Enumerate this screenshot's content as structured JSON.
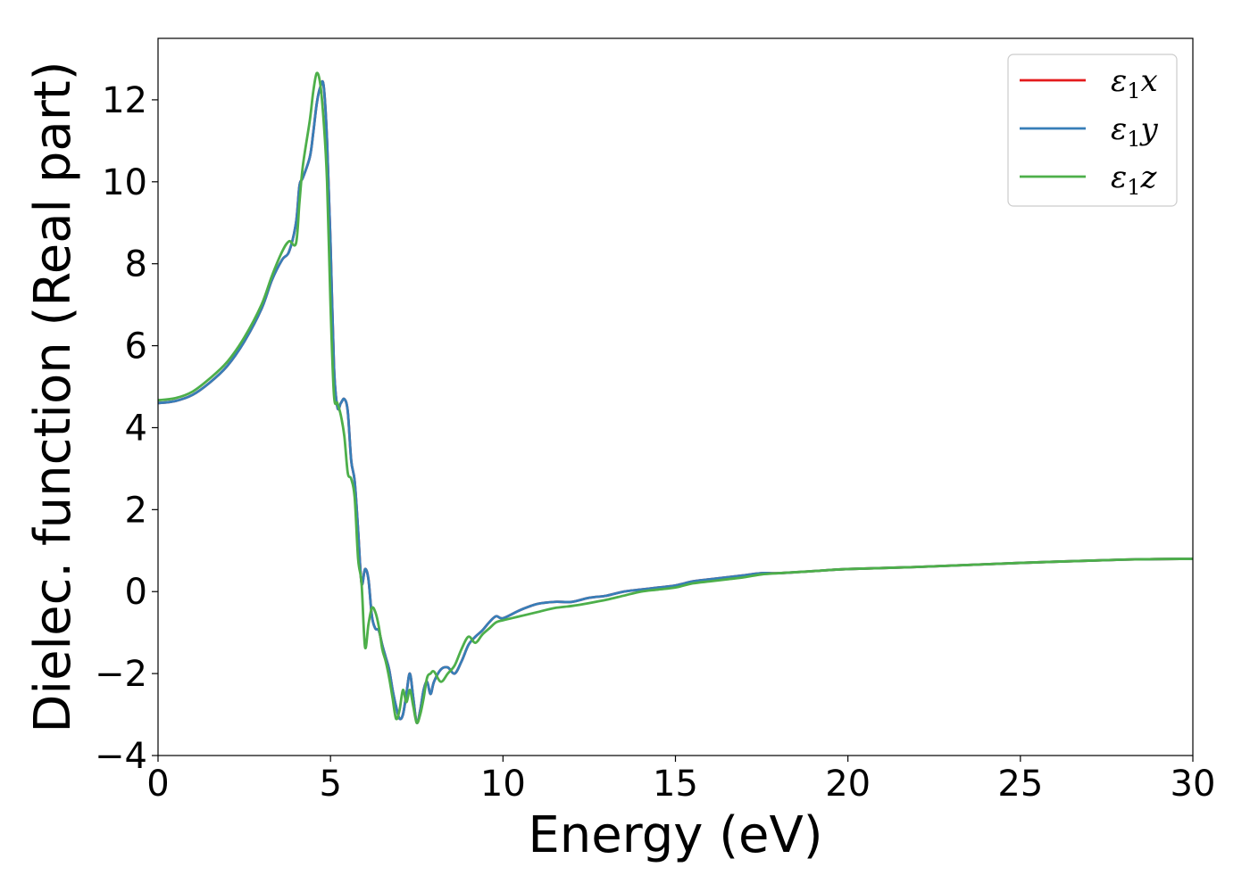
{
  "chart_data": {
    "type": "line",
    "title": "",
    "xlabel": "Energy (eV)",
    "ylabel": "Dielec. function (Real part)",
    "xlim": [
      0,
      30
    ],
    "ylim": [
      -4,
      13.5
    ],
    "xticks": [
      0,
      5,
      10,
      15,
      20,
      25,
      30
    ],
    "yticks": [
      -4,
      -2,
      0,
      2,
      4,
      6,
      8,
      10,
      12
    ],
    "grid": false,
    "legend_position": "top-right",
    "series": [
      {
        "name": "ε1x",
        "color": "#e41a1c",
        "x": [
          0,
          0.5,
          1,
          1.5,
          2,
          2.5,
          3,
          3.3,
          3.6,
          3.8,
          4.0,
          4.1,
          4.2,
          4.4,
          4.5,
          4.6,
          4.7,
          4.8,
          4.9,
          5.0,
          5.1,
          5.2,
          5.3,
          5.4,
          5.5,
          5.6,
          5.7,
          5.8,
          5.9,
          6.0,
          6.1,
          6.2,
          6.3,
          6.4,
          6.5,
          6.6,
          6.7,
          6.8,
          6.9,
          7.0,
          7.1,
          7.2,
          7.3,
          7.4,
          7.5,
          7.6,
          7.7,
          7.8,
          7.9,
          8.0,
          8.2,
          8.4,
          8.6,
          8.8,
          9.0,
          9.2,
          9.4,
          9.6,
          9.8,
          10.0,
          10.5,
          11.0,
          11.5,
          12.0,
          12.5,
          13.0,
          13.5,
          14.0,
          14.5,
          15.0,
          15.5,
          16.0,
          16.5,
          17.0,
          17.5,
          18,
          19,
          20,
          22,
          25,
          28,
          30
        ],
        "y": [
          4.6,
          4.65,
          4.8,
          5.1,
          5.5,
          6.1,
          6.9,
          7.6,
          8.1,
          8.3,
          9.0,
          9.9,
          10.1,
          10.6,
          11.2,
          11.9,
          12.3,
          12.35,
          11.0,
          8.5,
          5.5,
          4.5,
          4.6,
          4.7,
          4.4,
          3.2,
          2.7,
          1.5,
          0.2,
          0.55,
          0.3,
          -0.6,
          -0.9,
          -0.95,
          -1.3,
          -1.6,
          -1.9,
          -2.4,
          -2.8,
          -3.1,
          -3.0,
          -2.5,
          -2.0,
          -2.6,
          -3.2,
          -2.9,
          -2.4,
          -2.2,
          -2.5,
          -2.2,
          -1.9,
          -1.85,
          -2.0,
          -1.7,
          -1.3,
          -1.1,
          -0.95,
          -0.75,
          -0.6,
          -0.65,
          -0.45,
          -0.3,
          -0.25,
          -0.25,
          -0.15,
          -0.1,
          0.0,
          0.05,
          0.1,
          0.15,
          0.25,
          0.3,
          0.35,
          0.4,
          0.45,
          0.45,
          0.5,
          0.55,
          0.6,
          0.7,
          0.78,
          0.8
        ]
      },
      {
        "name": "ε1y",
        "color": "#377eb8",
        "x": [
          0,
          0.5,
          1,
          1.5,
          2,
          2.5,
          3,
          3.3,
          3.6,
          3.8,
          4.0,
          4.1,
          4.2,
          4.4,
          4.5,
          4.6,
          4.7,
          4.8,
          4.9,
          5.0,
          5.1,
          5.2,
          5.3,
          5.4,
          5.5,
          5.6,
          5.7,
          5.8,
          5.9,
          6.0,
          6.1,
          6.2,
          6.3,
          6.4,
          6.5,
          6.6,
          6.7,
          6.8,
          6.9,
          7.0,
          7.1,
          7.2,
          7.3,
          7.4,
          7.5,
          7.6,
          7.7,
          7.8,
          7.9,
          8.0,
          8.2,
          8.4,
          8.6,
          8.8,
          9.0,
          9.2,
          9.4,
          9.6,
          9.8,
          10.0,
          10.5,
          11.0,
          11.5,
          12.0,
          12.5,
          13.0,
          13.5,
          14.0,
          14.5,
          15.0,
          15.5,
          16.0,
          16.5,
          17.0,
          17.5,
          18,
          19,
          20,
          22,
          25,
          28,
          30
        ],
        "y": [
          4.6,
          4.65,
          4.8,
          5.1,
          5.5,
          6.1,
          6.9,
          7.6,
          8.1,
          8.3,
          9.0,
          9.9,
          10.1,
          10.6,
          11.2,
          11.9,
          12.3,
          12.35,
          11.0,
          8.5,
          5.5,
          4.5,
          4.6,
          4.7,
          4.4,
          3.2,
          2.7,
          1.5,
          0.2,
          0.55,
          0.3,
          -0.6,
          -0.9,
          -0.95,
          -1.3,
          -1.6,
          -1.9,
          -2.4,
          -2.8,
          -3.1,
          -3.0,
          -2.5,
          -2.0,
          -2.6,
          -3.2,
          -2.9,
          -2.4,
          -2.2,
          -2.5,
          -2.2,
          -1.9,
          -1.85,
          -2.0,
          -1.7,
          -1.3,
          -1.1,
          -0.95,
          -0.75,
          -0.6,
          -0.65,
          -0.45,
          -0.3,
          -0.25,
          -0.25,
          -0.15,
          -0.1,
          0.0,
          0.05,
          0.1,
          0.15,
          0.25,
          0.3,
          0.35,
          0.4,
          0.45,
          0.45,
          0.5,
          0.55,
          0.6,
          0.7,
          0.78,
          0.8
        ]
      },
      {
        "name": "ε1z",
        "color": "#4daf4a",
        "x": [
          0,
          0.5,
          1,
          1.5,
          2,
          2.5,
          3,
          3.3,
          3.6,
          3.8,
          4.0,
          4.1,
          4.2,
          4.4,
          4.5,
          4.6,
          4.7,
          4.8,
          4.9,
          5.0,
          5.1,
          5.2,
          5.3,
          5.4,
          5.5,
          5.6,
          5.7,
          5.8,
          5.9,
          6.0,
          6.1,
          6.2,
          6.3,
          6.4,
          6.5,
          6.6,
          6.7,
          6.8,
          6.9,
          7.0,
          7.1,
          7.2,
          7.3,
          7.4,
          7.5,
          7.6,
          7.7,
          7.8,
          7.9,
          8.0,
          8.2,
          8.4,
          8.6,
          8.8,
          9.0,
          9.2,
          9.4,
          9.6,
          9.8,
          10.0,
          10.5,
          11.0,
          11.5,
          12.0,
          12.5,
          13.0,
          13.5,
          14.0,
          14.5,
          15.0,
          15.5,
          16.0,
          16.5,
          17.0,
          17.5,
          18,
          19,
          20,
          22,
          25,
          28,
          30
        ],
        "y": [
          4.67,
          4.72,
          4.88,
          5.2,
          5.6,
          6.2,
          7.0,
          7.7,
          8.3,
          8.55,
          8.5,
          9.5,
          10.4,
          11.5,
          12.2,
          12.65,
          12.4,
          11.5,
          10.0,
          7.0,
          4.8,
          4.6,
          4.3,
          3.8,
          2.9,
          2.75,
          2.3,
          0.8,
          0.2,
          -1.35,
          -0.8,
          -0.4,
          -0.5,
          -0.85,
          -1.4,
          -1.7,
          -2.1,
          -2.6,
          -3.1,
          -2.9,
          -2.4,
          -2.7,
          -2.4,
          -2.8,
          -3.2,
          -3.0,
          -2.6,
          -2.1,
          -2.0,
          -1.95,
          -2.2,
          -2.0,
          -1.8,
          -1.4,
          -1.1,
          -1.25,
          -1.05,
          -0.9,
          -0.75,
          -0.7,
          -0.6,
          -0.5,
          -0.4,
          -0.35,
          -0.28,
          -0.2,
          -0.1,
          0.0,
          0.05,
          0.1,
          0.2,
          0.25,
          0.3,
          0.35,
          0.42,
          0.45,
          0.5,
          0.55,
          0.6,
          0.7,
          0.78,
          0.8
        ]
      }
    ]
  }
}
